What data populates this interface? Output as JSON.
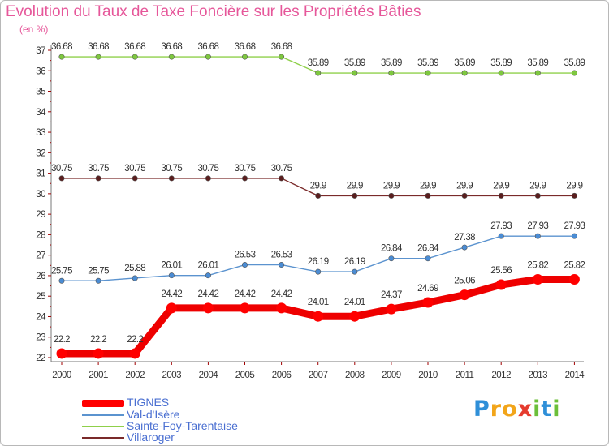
{
  "chart_data": {
    "type": "line",
    "title": "Evolution du Taux de Taxe Foncière sur les Propriétés Bâties",
    "subtitle": "(en %)",
    "x": [
      "2000",
      "2001",
      "2002",
      "2003",
      "2004",
      "2005",
      "2006",
      "2007",
      "2008",
      "2009",
      "2010",
      "2011",
      "2012",
      "2013",
      "2014"
    ],
    "y_ticks": [
      22,
      23,
      24,
      25,
      26,
      27,
      28,
      29,
      30,
      31,
      32,
      33,
      34,
      35,
      36,
      37
    ],
    "ylim": [
      22,
      37
    ],
    "grid": false,
    "legend_position": "bottom-left",
    "series": [
      {
        "name": "Sainte-Foy-Tarentaise",
        "color": "#8fd04a",
        "marker_color": "#7ec83f",
        "values": [
          36.68,
          36.68,
          36.68,
          36.68,
          36.68,
          36.68,
          36.68,
          35.89,
          35.89,
          35.89,
          35.89,
          35.89,
          35.89,
          35.89,
          35.89
        ],
        "labels": [
          "36.68",
          "36.68",
          "36.68",
          "36.68",
          "36.68",
          "36.68",
          "36.68",
          "35.89",
          "35.89",
          "35.89",
          "35.89",
          "35.89",
          "35.89",
          "35.89",
          "35.89"
        ]
      },
      {
        "name": "Villaroger",
        "color": "#7a2a2a",
        "marker_color": "#5a1e1e",
        "values": [
          30.75,
          30.75,
          30.75,
          30.75,
          30.75,
          30.75,
          30.75,
          29.9,
          29.9,
          29.9,
          29.9,
          29.9,
          29.9,
          29.9,
          29.9
        ],
        "labels": [
          "30.75",
          "30.75",
          "30.75",
          "30.75",
          "30.75",
          "30.75",
          "30.75",
          "29.9",
          "29.9",
          "29.9",
          "29.9",
          "29.9",
          "29.9",
          "29.9",
          "29.9"
        ]
      },
      {
        "name": "Val-d'Isère",
        "color": "#5b93cf",
        "marker_color": "#4a8cd4",
        "values": [
          25.75,
          25.75,
          25.88,
          26.01,
          26.01,
          26.53,
          26.53,
          26.19,
          26.19,
          26.84,
          26.84,
          27.38,
          27.93,
          27.93,
          27.93
        ],
        "labels": [
          "25.75",
          "25.75",
          "25.88",
          "26.01",
          "26.01",
          "26.53",
          "26.53",
          "26.19",
          "26.19",
          "26.84",
          "26.84",
          "27.38",
          "27.93",
          "27.93",
          "27.93"
        ]
      },
      {
        "name": "TIGNES",
        "color": "#ff0000",
        "marker_color": "#ff0000",
        "values": [
          22.2,
          22.2,
          22.2,
          24.42,
          24.42,
          24.42,
          24.42,
          24.01,
          24.01,
          24.37,
          24.69,
          25.06,
          25.56,
          25.82,
          25.82
        ],
        "labels": [
          "22.2",
          "22.2",
          "22.2",
          "24.42",
          "24.42",
          "24.42",
          "24.42",
          "24.01",
          "24.01",
          "24.37",
          "24.69",
          "25.06",
          "25.56",
          "25.82",
          "25.82"
        ]
      }
    ]
  },
  "legend": {
    "items": [
      {
        "label": "TIGNES",
        "color": "#ff0000",
        "thick": true
      },
      {
        "label": "Val-d'Isère",
        "color": "#5b93cf",
        "thick": false
      },
      {
        "label": "Sainte-Foy-Tarentaise",
        "color": "#8fd04a",
        "thick": false
      },
      {
        "label": "Villaroger",
        "color": "#7a2a2a",
        "thick": false
      }
    ]
  },
  "logo": {
    "letters": [
      {
        "ch": "P",
        "color": "#2f8fd8"
      },
      {
        "ch": "r",
        "color": "#f2a51a"
      },
      {
        "ch": "o",
        "color": "#f2a51a"
      },
      {
        "ch": "x",
        "color": "#e53b2e"
      },
      {
        "ch": "i",
        "color": "#6bbf3a"
      },
      {
        "ch": "t",
        "color": "#2f8fd8"
      },
      {
        "ch": "i",
        "color": "#6bbf3a"
      }
    ]
  }
}
